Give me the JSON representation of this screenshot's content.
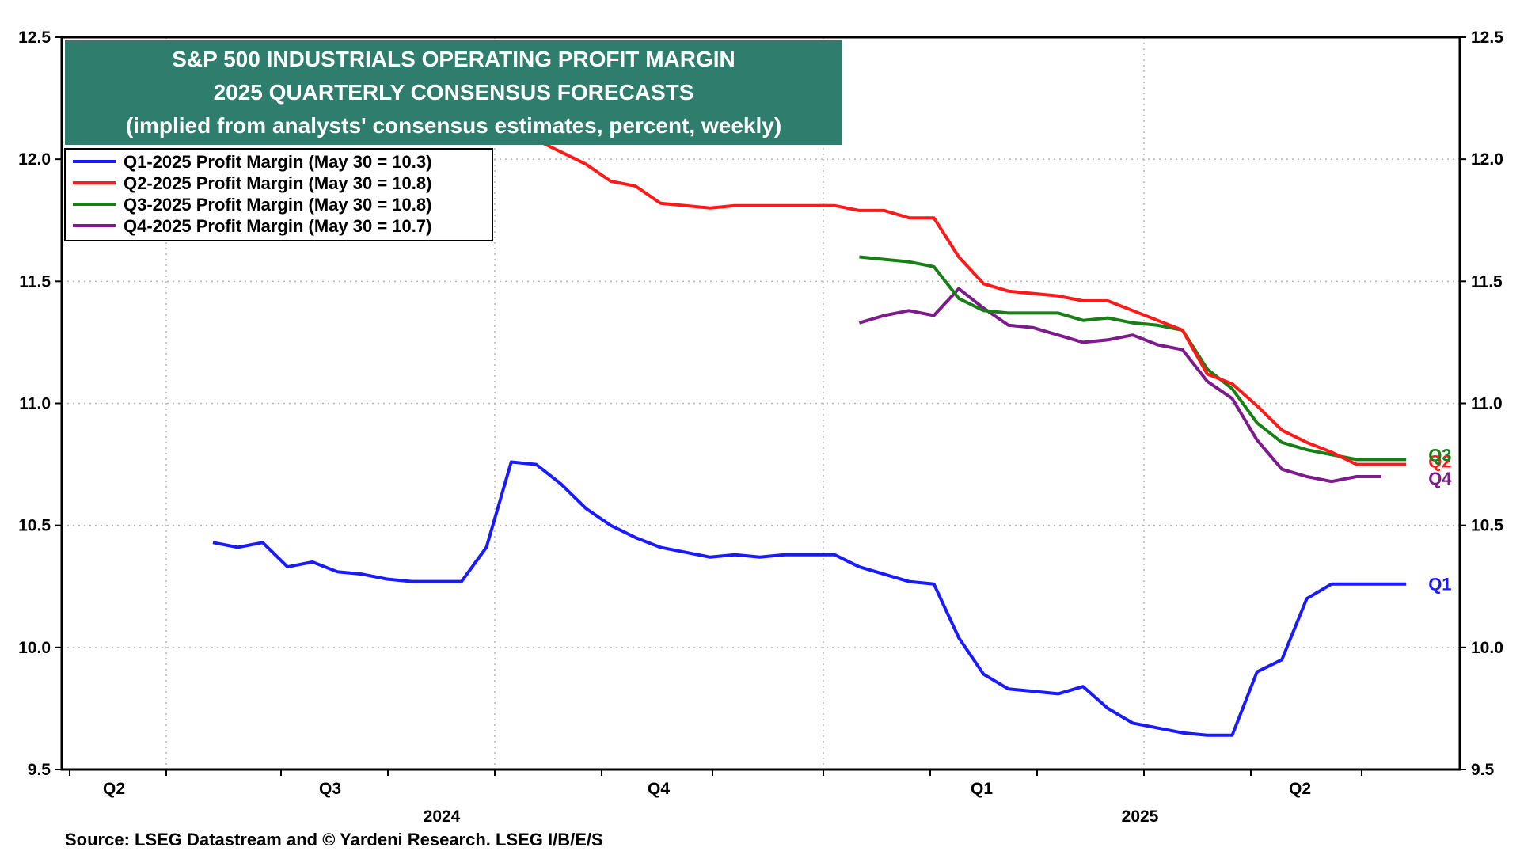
{
  "chart_data": {
    "type": "line",
    "title": [
      "S&P 500 INDUSTRIALS OPERATING PROFIT MARGIN",
      "2025 QUARTERLY CONSENSUS FORECASTS",
      "(implied from analysts' consensus estimates, percent, weekly)"
    ],
    "source": "Source: LSEG Datastream and © Yardeni Research. LSEG I/B/E/S",
    "ylim": [
      9.5,
      12.5
    ],
    "y_ticks": [
      "12.5",
      "12.0",
      "11.5",
      "11.0",
      "10.5",
      "10.0",
      "9.5"
    ],
    "quarter_labels": [
      "Q2",
      "Q3",
      "Q4",
      "Q1",
      "Q2"
    ],
    "year_labels": [
      "2024",
      "2025"
    ],
    "colors": {
      "title_bg": "#2e7d6d",
      "blue": "#1a1aff",
      "red": "#ff1a1a",
      "green": "#168016",
      "purple": "#7d1a8c"
    },
    "series": [
      {
        "name": "Q1-2025 Profit Margin (May 30 = 10.3)",
        "end_label": "Q1",
        "color": "#1a1aff",
        "start_week": 0,
        "values": [
          10.43,
          10.41,
          10.43,
          10.33,
          10.35,
          10.31,
          10.3,
          10.28,
          10.27,
          10.27,
          10.27,
          10.41,
          10.76,
          10.75,
          10.67,
          10.57,
          10.5,
          10.45,
          10.41,
          10.39,
          10.37,
          10.38,
          10.37,
          10.38,
          10.38,
          10.38,
          10.33,
          10.3,
          10.27,
          10.26,
          10.04,
          9.89,
          9.83,
          9.82,
          9.81,
          9.84,
          9.75,
          9.69,
          9.67,
          9.65,
          9.64,
          9.64,
          9.9,
          9.95,
          10.2,
          10.26,
          10.26,
          10.26,
          10.26
        ]
      },
      {
        "name": "Q2-2025 Profit Margin (May 30 = 10.8)",
        "end_label": "Q2",
        "color": "#ff1a1a",
        "start_week": 13,
        "values": [
          12.08,
          12.03,
          11.98,
          11.91,
          11.89,
          11.82,
          11.81,
          11.8,
          11.81,
          11.81,
          11.81,
          11.81,
          11.81,
          11.79,
          11.79,
          11.76,
          11.76,
          11.6,
          11.49,
          11.46,
          11.45,
          11.44,
          11.42,
          11.42,
          11.38,
          11.34,
          11.3,
          11.12,
          11.08,
          10.99,
          10.89,
          10.84,
          10.8,
          10.75,
          10.75,
          10.75
        ]
      },
      {
        "name": "Q3-2025 Profit Margin (May 30 = 10.8)",
        "end_label": "Q3",
        "color": "#168016",
        "start_week": 26,
        "values": [
          11.6,
          11.59,
          11.58,
          11.56,
          11.43,
          11.38,
          11.37,
          11.37,
          11.37,
          11.34,
          11.35,
          11.33,
          11.32,
          11.3,
          11.14,
          11.06,
          10.92,
          10.84,
          10.81,
          10.79,
          10.77,
          10.77,
          10.77
        ]
      },
      {
        "name": "Q4-2025 Profit Margin (May 30 = 10.7)",
        "end_label": "Q4",
        "color": "#7d1a8c",
        "start_week": 26,
        "values": [
          11.33,
          11.36,
          11.38,
          11.36,
          11.47,
          11.39,
          11.32,
          11.31,
          11.28,
          11.25,
          11.26,
          11.28,
          11.24,
          11.22,
          11.09,
          11.02,
          10.85,
          10.73,
          10.7,
          10.68,
          10.7,
          10.7
        ]
      }
    ]
  }
}
